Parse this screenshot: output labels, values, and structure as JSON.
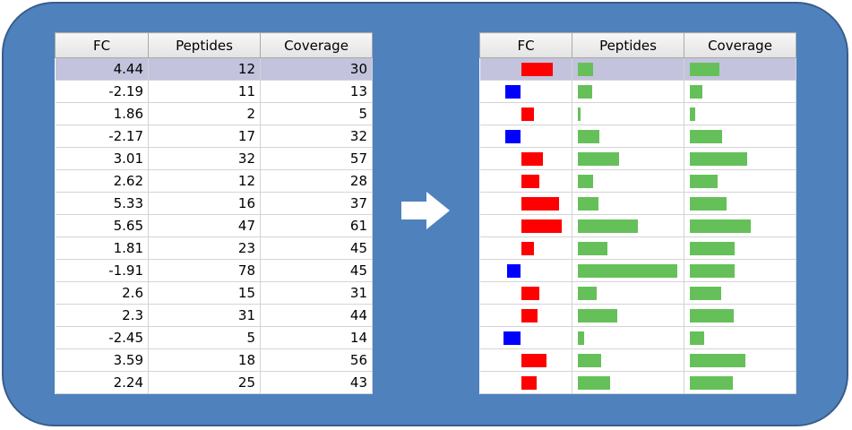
{
  "colors": {
    "background_panel": "#4f81bd",
    "positive_fc": "#ff0000",
    "negative_fc": "#0000ff",
    "count_bar": "#66c05a",
    "selected_row": "#c3c3dd"
  },
  "arrow_icon": "right-arrow-icon",
  "columns": [
    "FC",
    "Peptides",
    "Coverage"
  ],
  "selected_row_index": 0,
  "rows": [
    {
      "fc": "4.44",
      "peptides": "12",
      "coverage": "30"
    },
    {
      "fc": "-2.19",
      "peptides": "11",
      "coverage": "13"
    },
    {
      "fc": "1.86",
      "peptides": "2",
      "coverage": "5"
    },
    {
      "fc": "-2.17",
      "peptides": "17",
      "coverage": "32"
    },
    {
      "fc": "3.01",
      "peptides": "32",
      "coverage": "57"
    },
    {
      "fc": "2.62",
      "peptides": "12",
      "coverage": "28"
    },
    {
      "fc": "5.33",
      "peptides": "16",
      "coverage": "37"
    },
    {
      "fc": "5.65",
      "peptides": "47",
      "coverage": "61"
    },
    {
      "fc": "1.81",
      "peptides": "23",
      "coverage": "45"
    },
    {
      "fc": "-1.91",
      "peptides": "78",
      "coverage": "45"
    },
    {
      "fc": "2.6",
      "peptides": "15",
      "coverage": "31"
    },
    {
      "fc": "2.3",
      "peptides": "31",
      "coverage": "44"
    },
    {
      "fc": "-2.45",
      "peptides": "5",
      "coverage": "14"
    },
    {
      "fc": "3.59",
      "peptides": "18",
      "coverage": "56"
    },
    {
      "fc": "2.24",
      "peptides": "25",
      "coverage": "43"
    }
  ]
}
